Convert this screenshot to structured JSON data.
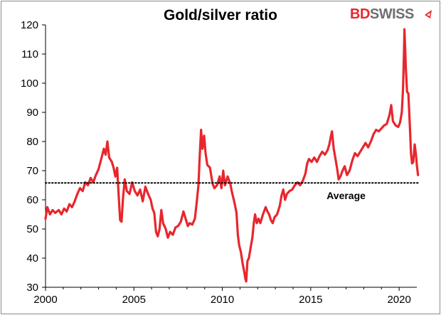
{
  "chart_data": {
    "type": "line",
    "title": "Gold/silver ratio",
    "xlabel": "",
    "ylabel": "",
    "xlim": [
      2000,
      2021
    ],
    "ylim": [
      30,
      120
    ],
    "x_ticks": [
      "2000",
      "2005",
      "2010",
      "2015",
      "2020"
    ],
    "y_ticks": [
      "30",
      "40",
      "50",
      "60",
      "70",
      "80",
      "90",
      "100",
      "110",
      "120"
    ],
    "grid": false,
    "legend": "none",
    "series": [
      {
        "color": "#e8262d",
        "points": [
          [
            2000.0,
            53.5
          ],
          [
            2000.1,
            57.5
          ],
          [
            2000.25,
            55.0
          ],
          [
            2000.4,
            56.5
          ],
          [
            2000.55,
            55.5
          ],
          [
            2000.75,
            56.5
          ],
          [
            2000.9,
            55.0
          ],
          [
            2001.05,
            57.0
          ],
          [
            2001.2,
            56.0
          ],
          [
            2001.35,
            58.5
          ],
          [
            2001.5,
            57.5
          ],
          [
            2001.65,
            59.5
          ],
          [
            2001.8,
            62.0
          ],
          [
            2001.95,
            64.0
          ],
          [
            2002.1,
            63.0
          ],
          [
            2002.25,
            66.0
          ],
          [
            2002.4,
            65.0
          ],
          [
            2002.55,
            67.5
          ],
          [
            2002.7,
            66.0
          ],
          [
            2002.85,
            68.5
          ],
          [
            2003.0,
            70.5
          ],
          [
            2003.15,
            74.0
          ],
          [
            2003.3,
            77.5
          ],
          [
            2003.4,
            75.5
          ],
          [
            2003.5,
            80.0
          ],
          [
            2003.6,
            74.5
          ],
          [
            2003.75,
            73.0
          ],
          [
            2003.85,
            71.0
          ],
          [
            2003.95,
            68.0
          ],
          [
            2004.05,
            71.0
          ],
          [
            2004.15,
            60.0
          ],
          [
            2004.22,
            53.0
          ],
          [
            2004.3,
            52.5
          ],
          [
            2004.38,
            60.5
          ],
          [
            2004.48,
            67.0
          ],
          [
            2004.6,
            63.0
          ],
          [
            2004.75,
            62.0
          ],
          [
            2004.9,
            66.0
          ],
          [
            2005.05,
            63.0
          ],
          [
            2005.2,
            61.5
          ],
          [
            2005.35,
            63.5
          ],
          [
            2005.5,
            59.5
          ],
          [
            2005.65,
            64.5
          ],
          [
            2005.8,
            62.0
          ],
          [
            2005.95,
            60.0
          ],
          [
            2006.05,
            57.0
          ],
          [
            2006.15,
            55.5
          ],
          [
            2006.25,
            49.0
          ],
          [
            2006.35,
            47.5
          ],
          [
            2006.45,
            50.0
          ],
          [
            2006.55,
            56.5
          ],
          [
            2006.65,
            52.0
          ],
          [
            2006.8,
            50.0
          ],
          [
            2006.92,
            47.0
          ],
          [
            2007.05,
            49.0
          ],
          [
            2007.2,
            48.0
          ],
          [
            2007.35,
            50.5
          ],
          [
            2007.5,
            51.0
          ],
          [
            2007.65,
            52.5
          ],
          [
            2007.8,
            56.0
          ],
          [
            2007.95,
            53.0
          ],
          [
            2008.05,
            51.0
          ],
          [
            2008.15,
            52.0
          ],
          [
            2008.3,
            51.5
          ],
          [
            2008.45,
            53.5
          ],
          [
            2008.55,
            59.0
          ],
          [
            2008.65,
            65.0
          ],
          [
            2008.72,
            75.0
          ],
          [
            2008.8,
            84.0
          ],
          [
            2008.88,
            77.5
          ],
          [
            2008.97,
            82.0
          ],
          [
            2009.05,
            76.0
          ],
          [
            2009.15,
            72.0
          ],
          [
            2009.3,
            71.0
          ],
          [
            2009.45,
            65.5
          ],
          [
            2009.55,
            64.0
          ],
          [
            2009.7,
            65.0
          ],
          [
            2009.85,
            68.0
          ],
          [
            2009.95,
            64.0
          ],
          [
            2010.05,
            70.0
          ],
          [
            2010.15,
            65.0
          ],
          [
            2010.3,
            68.0
          ],
          [
            2010.45,
            65.5
          ],
          [
            2010.55,
            62.5
          ],
          [
            2010.65,
            60.0
          ],
          [
            2010.72,
            58.0
          ],
          [
            2010.8,
            55.5
          ],
          [
            2010.88,
            48.0
          ],
          [
            2010.95,
            44.5
          ],
          [
            2011.05,
            42.0
          ],
          [
            2011.15,
            38.0
          ],
          [
            2011.25,
            35.0
          ],
          [
            2011.3,
            33.0
          ],
          [
            2011.35,
            32.0
          ],
          [
            2011.42,
            39.0
          ],
          [
            2011.5,
            40.0
          ],
          [
            2011.6,
            43.5
          ],
          [
            2011.7,
            47.0
          ],
          [
            2011.78,
            52.0
          ],
          [
            2011.85,
            55.0
          ],
          [
            2011.95,
            52.0
          ],
          [
            2012.05,
            53.5
          ],
          [
            2012.15,
            52.0
          ],
          [
            2012.3,
            55.0
          ],
          [
            2012.45,
            57.5
          ],
          [
            2012.55,
            56.0
          ],
          [
            2012.65,
            55.0
          ],
          [
            2012.75,
            53.0
          ],
          [
            2012.85,
            52.0
          ],
          [
            2012.95,
            54.0
          ],
          [
            2013.1,
            55.0
          ],
          [
            2013.25,
            58.0
          ],
          [
            2013.35,
            61.5
          ],
          [
            2013.45,
            63.5
          ],
          [
            2013.55,
            60.0
          ],
          [
            2013.65,
            62.0
          ],
          [
            2013.8,
            63.0
          ],
          [
            2013.95,
            63.5
          ],
          [
            2014.1,
            65.0
          ],
          [
            2014.25,
            66.0
          ],
          [
            2014.4,
            65.0
          ],
          [
            2014.55,
            66.5
          ],
          [
            2014.7,
            69.0
          ],
          [
            2014.8,
            72.5
          ],
          [
            2014.9,
            74.0
          ],
          [
            2015.05,
            73.0
          ],
          [
            2015.2,
            74.5
          ],
          [
            2015.35,
            73.0
          ],
          [
            2015.5,
            75.0
          ],
          [
            2015.65,
            76.5
          ],
          [
            2015.8,
            75.5
          ],
          [
            2015.95,
            77.0
          ],
          [
            2016.05,
            79.0
          ],
          [
            2016.15,
            82.0
          ],
          [
            2016.2,
            83.5
          ],
          [
            2016.3,
            77.5
          ],
          [
            2016.4,
            74.0
          ],
          [
            2016.5,
            70.5
          ],
          [
            2016.58,
            67.0
          ],
          [
            2016.68,
            68.0
          ],
          [
            2016.8,
            70.0
          ],
          [
            2016.92,
            71.5
          ],
          [
            2017.05,
            68.5
          ],
          [
            2017.2,
            70.0
          ],
          [
            2017.35,
            73.5
          ],
          [
            2017.5,
            76.0
          ],
          [
            2017.65,
            75.0
          ],
          [
            2017.8,
            76.5
          ],
          [
            2017.95,
            78.0
          ],
          [
            2018.1,
            79.5
          ],
          [
            2018.25,
            78.0
          ],
          [
            2018.4,
            80.0
          ],
          [
            2018.55,
            82.5
          ],
          [
            2018.7,
            84.0
          ],
          [
            2018.85,
            83.5
          ],
          [
            2019.0,
            84.5
          ],
          [
            2019.15,
            85.5
          ],
          [
            2019.3,
            86.0
          ],
          [
            2019.45,
            89.0
          ],
          [
            2019.55,
            92.5
          ],
          [
            2019.65,
            87.0
          ],
          [
            2019.8,
            85.5
          ],
          [
            2019.95,
            85.0
          ],
          [
            2020.05,
            86.5
          ],
          [
            2020.15,
            90.0
          ],
          [
            2020.22,
            98.0
          ],
          [
            2020.27,
            110.0
          ],
          [
            2020.3,
            118.5
          ],
          [
            2020.34,
            112.0
          ],
          [
            2020.38,
            105.0
          ],
          [
            2020.45,
            97.0
          ],
          [
            2020.52,
            96.5
          ],
          [
            2020.6,
            86.0
          ],
          [
            2020.67,
            76.0
          ],
          [
            2020.73,
            72.5
          ],
          [
            2020.8,
            73.0
          ],
          [
            2020.88,
            79.0
          ],
          [
            2020.95,
            75.5
          ],
          [
            2021.0,
            72.0
          ],
          [
            2021.07,
            68.5
          ]
        ]
      },
      {
        "color": "#000000",
        "line_style": "dotted",
        "label": "Average",
        "points": [
          [
            2000.0,
            65.8
          ],
          [
            2021.07,
            65.8
          ]
        ]
      }
    ]
  },
  "logo": {
    "part1": "BD",
    "part2": "SWISS"
  }
}
